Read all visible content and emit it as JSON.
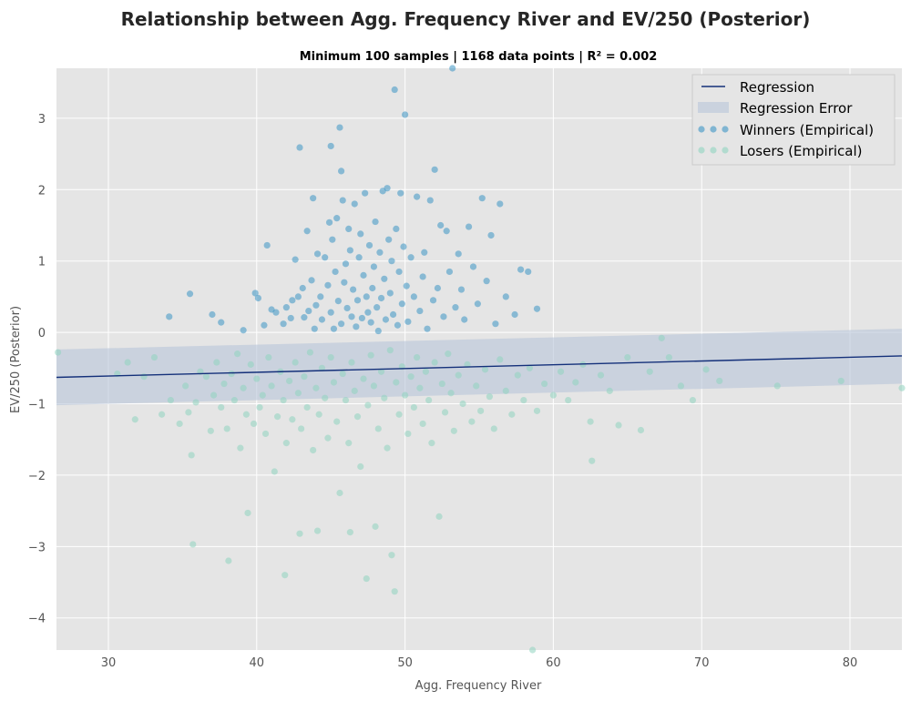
{
  "chart_data": {
    "type": "scatter",
    "title": "Relationship between Agg. Frequency River and EV/250 (Posterior)",
    "subtitle": "Minimum 100 samples | 1168 data points | R² = 0.002",
    "xlabel": "Agg. Frequency River",
    "ylabel": "EV/250 (Posterior)",
    "xlim": [
      26.5,
      83.5
    ],
    "ylim": [
      -4.45,
      3.7
    ],
    "xticks": [
      30,
      40,
      50,
      60,
      70,
      80
    ],
    "yticks": [
      -4,
      -3,
      -2,
      -1,
      0,
      1,
      2,
      3
    ],
    "grid": true,
    "legend_position": "top-right",
    "colors": {
      "background": "#e5e5e5",
      "grid": "#ffffff",
      "regression": "#14307a",
      "regression_error": "#b8c4d8",
      "winners": "#3c95c4",
      "losers": "#8fd3bf"
    },
    "regression": {
      "name": "Regression",
      "points": [
        [
          26.5,
          -0.63
        ],
        [
          83.5,
          -0.33
        ]
      ],
      "error_band": {
        "name": "Regression Error",
        "upper": [
          [
            26.5,
            -0.24
          ],
          [
            83.5,
            0.05
          ]
        ],
        "lower": [
          [
            26.5,
            -1.02
          ],
          [
            83.5,
            -0.72
          ]
        ]
      }
    },
    "series": [
      {
        "name": "Winners (Empirical)",
        "points": [
          [
            34.1,
            0.22
          ],
          [
            35.5,
            0.54
          ],
          [
            37.0,
            0.25
          ],
          [
            37.6,
            0.14
          ],
          [
            39.1,
            0.03
          ],
          [
            39.9,
            0.55
          ],
          [
            40.1,
            0.48
          ],
          [
            40.5,
            0.1
          ],
          [
            40.7,
            1.22
          ],
          [
            41.0,
            0.32
          ],
          [
            41.3,
            0.28
          ],
          [
            41.8,
            0.12
          ],
          [
            42.0,
            0.35
          ],
          [
            42.3,
            0.2
          ],
          [
            42.4,
            0.45
          ],
          [
            42.6,
            1.02
          ],
          [
            42.8,
            0.5
          ],
          [
            42.9,
            2.59
          ],
          [
            43.1,
            0.62
          ],
          [
            43.2,
            0.21
          ],
          [
            43.4,
            1.42
          ],
          [
            43.5,
            0.3
          ],
          [
            43.7,
            0.73
          ],
          [
            43.8,
            1.88
          ],
          [
            43.9,
            0.05
          ],
          [
            44.0,
            0.38
          ],
          [
            44.1,
            1.1
          ],
          [
            44.3,
            0.5
          ],
          [
            44.4,
            0.18
          ],
          [
            44.6,
            1.05
          ],
          [
            44.8,
            0.66
          ],
          [
            44.9,
            1.54
          ],
          [
            45.0,
            2.61
          ],
          [
            45.0,
            0.28
          ],
          [
            45.1,
            1.3
          ],
          [
            45.2,
            0.05
          ],
          [
            45.3,
            0.85
          ],
          [
            45.4,
            1.6
          ],
          [
            45.5,
            0.44
          ],
          [
            45.6,
            2.87
          ],
          [
            45.7,
            2.26
          ],
          [
            45.7,
            0.12
          ],
          [
            45.8,
            1.85
          ],
          [
            45.9,
            0.7
          ],
          [
            46.0,
            0.96
          ],
          [
            46.1,
            0.34
          ],
          [
            46.2,
            1.45
          ],
          [
            46.3,
            1.15
          ],
          [
            46.4,
            0.22
          ],
          [
            46.5,
            0.6
          ],
          [
            46.6,
            1.8
          ],
          [
            46.7,
            0.08
          ],
          [
            46.8,
            0.45
          ],
          [
            46.9,
            1.05
          ],
          [
            47.0,
            1.38
          ],
          [
            47.1,
            0.2
          ],
          [
            47.2,
            0.8
          ],
          [
            47.3,
            1.95
          ],
          [
            47.4,
            0.5
          ],
          [
            47.5,
            0.28
          ],
          [
            47.6,
            1.22
          ],
          [
            47.7,
            0.14
          ],
          [
            47.8,
            0.62
          ],
          [
            47.9,
            0.92
          ],
          [
            48.0,
            1.55
          ],
          [
            48.1,
            0.35
          ],
          [
            48.2,
            0.02
          ],
          [
            48.3,
            1.12
          ],
          [
            48.4,
            0.48
          ],
          [
            48.5,
            1.98
          ],
          [
            48.6,
            0.75
          ],
          [
            48.7,
            0.18
          ],
          [
            48.8,
            2.02
          ],
          [
            48.9,
            1.3
          ],
          [
            49.0,
            0.55
          ],
          [
            49.1,
            1.0
          ],
          [
            49.2,
            0.25
          ],
          [
            49.3,
            3.4
          ],
          [
            49.4,
            1.45
          ],
          [
            49.5,
            0.1
          ],
          [
            49.6,
            0.85
          ],
          [
            49.7,
            1.95
          ],
          [
            49.8,
            0.4
          ],
          [
            49.9,
            1.2
          ],
          [
            50.0,
            3.05
          ],
          [
            50.1,
            0.65
          ],
          [
            50.2,
            0.15
          ],
          [
            50.4,
            1.05
          ],
          [
            50.6,
            0.5
          ],
          [
            50.8,
            1.9
          ],
          [
            51.0,
            0.3
          ],
          [
            51.2,
            0.78
          ],
          [
            51.3,
            1.12
          ],
          [
            51.5,
            0.05
          ],
          [
            51.7,
            1.85
          ],
          [
            51.9,
            0.45
          ],
          [
            52.0,
            2.28
          ],
          [
            52.2,
            0.62
          ],
          [
            52.4,
            1.5
          ],
          [
            52.6,
            0.22
          ],
          [
            52.8,
            1.42
          ],
          [
            53.0,
            0.85
          ],
          [
            53.2,
            3.7
          ],
          [
            53.4,
            0.35
          ],
          [
            53.6,
            1.1
          ],
          [
            53.8,
            0.6
          ],
          [
            54.0,
            0.18
          ],
          [
            54.3,
            1.48
          ],
          [
            54.6,
            0.92
          ],
          [
            54.9,
            0.4
          ],
          [
            55.2,
            1.88
          ],
          [
            55.5,
            0.72
          ],
          [
            55.8,
            1.36
          ],
          [
            56.1,
            0.12
          ],
          [
            56.4,
            1.8
          ],
          [
            56.8,
            0.5
          ],
          [
            57.4,
            0.25
          ],
          [
            57.8,
            0.88
          ],
          [
            58.3,
            0.85
          ],
          [
            58.9,
            0.33
          ]
        ]
      },
      {
        "name": "Losers (Empirical)",
        "points": [
          [
            26.6,
            -0.28
          ],
          [
            30.6,
            -0.58
          ],
          [
            31.3,
            -0.42
          ],
          [
            31.8,
            -1.22
          ],
          [
            32.4,
            -0.62
          ],
          [
            33.1,
            -0.35
          ],
          [
            33.6,
            -1.15
          ],
          [
            34.2,
            -0.95
          ],
          [
            34.8,
            -1.28
          ],
          [
            35.2,
            -0.75
          ],
          [
            35.4,
            -1.12
          ],
          [
            35.6,
            -1.72
          ],
          [
            35.7,
            -2.97
          ],
          [
            35.9,
            -0.98
          ],
          [
            36.2,
            -0.55
          ],
          [
            36.6,
            -0.62
          ],
          [
            36.9,
            -1.38
          ],
          [
            37.1,
            -0.88
          ],
          [
            37.3,
            -0.42
          ],
          [
            37.6,
            -1.05
          ],
          [
            37.8,
            -0.72
          ],
          [
            38.0,
            -1.35
          ],
          [
            38.1,
            -3.2
          ],
          [
            38.3,
            -0.58
          ],
          [
            38.5,
            -0.95
          ],
          [
            38.7,
            -0.3
          ],
          [
            38.9,
            -1.62
          ],
          [
            39.1,
            -0.78
          ],
          [
            39.3,
            -1.15
          ],
          [
            39.4,
            -2.53
          ],
          [
            39.6,
            -0.45
          ],
          [
            39.8,
            -1.28
          ],
          [
            40.0,
            -0.65
          ],
          [
            40.2,
            -1.05
          ],
          [
            40.4,
            -0.88
          ],
          [
            40.6,
            -1.42
          ],
          [
            40.8,
            -0.35
          ],
          [
            41.0,
            -0.75
          ],
          [
            41.2,
            -1.95
          ],
          [
            41.4,
            -1.18
          ],
          [
            41.6,
            -0.55
          ],
          [
            41.8,
            -0.95
          ],
          [
            41.9,
            -3.4
          ],
          [
            42.0,
            -1.55
          ],
          [
            42.2,
            -0.68
          ],
          [
            42.4,
            -1.22
          ],
          [
            42.6,
            -0.42
          ],
          [
            42.8,
            -0.85
          ],
          [
            42.9,
            -2.82
          ],
          [
            43.0,
            -1.35
          ],
          [
            43.2,
            -0.62
          ],
          [
            43.4,
            -1.05
          ],
          [
            43.6,
            -0.28
          ],
          [
            43.8,
            -1.65
          ],
          [
            44.0,
            -0.78
          ],
          [
            44.1,
            -2.78
          ],
          [
            44.2,
            -1.15
          ],
          [
            44.4,
            -0.5
          ],
          [
            44.6,
            -0.92
          ],
          [
            44.8,
            -1.48
          ],
          [
            45.0,
            -0.35
          ],
          [
            45.2,
            -0.7
          ],
          [
            45.4,
            -1.25
          ],
          [
            45.6,
            -2.25
          ],
          [
            45.8,
            -0.58
          ],
          [
            46.0,
            -0.95
          ],
          [
            46.2,
            -1.55
          ],
          [
            46.3,
            -2.8
          ],
          [
            46.4,
            -0.42
          ],
          [
            46.6,
            -0.82
          ],
          [
            46.8,
            -1.18
          ],
          [
            47.0,
            -1.88
          ],
          [
            47.2,
            -0.65
          ],
          [
            47.4,
            -3.45
          ],
          [
            47.5,
            -1.02
          ],
          [
            47.7,
            -0.32
          ],
          [
            47.9,
            -0.75
          ],
          [
            48.0,
            -2.72
          ],
          [
            48.2,
            -1.35
          ],
          [
            48.4,
            -0.55
          ],
          [
            48.6,
            -0.92
          ],
          [
            48.8,
            -1.62
          ],
          [
            49.0,
            -0.25
          ],
          [
            49.1,
            -3.12
          ],
          [
            49.3,
            -3.63
          ],
          [
            49.4,
            -0.7
          ],
          [
            49.6,
            -1.15
          ],
          [
            49.8,
            -0.48
          ],
          [
            50.0,
            -0.88
          ],
          [
            50.2,
            -1.42
          ],
          [
            50.4,
            -0.62
          ],
          [
            50.6,
            -1.05
          ],
          [
            50.8,
            -0.35
          ],
          [
            51.0,
            -0.78
          ],
          [
            51.2,
            -1.28
          ],
          [
            51.4,
            -0.55
          ],
          [
            51.6,
            -0.95
          ],
          [
            51.8,
            -1.55
          ],
          [
            52.0,
            -0.42
          ],
          [
            52.3,
            -2.58
          ],
          [
            52.5,
            -0.72
          ],
          [
            52.7,
            -1.12
          ],
          [
            52.9,
            -0.3
          ],
          [
            53.1,
            -0.85
          ],
          [
            53.3,
            -1.38
          ],
          [
            53.6,
            -0.6
          ],
          [
            53.9,
            -1.0
          ],
          [
            54.2,
            -0.45
          ],
          [
            54.5,
            -1.25
          ],
          [
            54.8,
            -0.75
          ],
          [
            55.1,
            -1.1
          ],
          [
            55.4,
            -0.52
          ],
          [
            55.7,
            -0.9
          ],
          [
            56.0,
            -1.35
          ],
          [
            56.4,
            -0.38
          ],
          [
            56.8,
            -0.82
          ],
          [
            57.2,
            -1.15
          ],
          [
            57.6,
            -0.6
          ],
          [
            58.0,
            -0.95
          ],
          [
            58.4,
            -0.5
          ],
          [
            58.6,
            -4.45
          ],
          [
            58.9,
            -1.1
          ],
          [
            59.4,
            -0.72
          ],
          [
            60.0,
            -0.88
          ],
          [
            60.5,
            -0.55
          ],
          [
            61.0,
            -0.95
          ],
          [
            61.5,
            -0.7
          ],
          [
            62.0,
            -0.45
          ],
          [
            62.5,
            -1.25
          ],
          [
            62.6,
            -1.8
          ],
          [
            63.2,
            -0.6
          ],
          [
            63.8,
            -0.82
          ],
          [
            64.4,
            -1.3
          ],
          [
            65.0,
            -0.35
          ],
          [
            65.9,
            -1.37
          ],
          [
            66.5,
            -0.55
          ],
          [
            67.3,
            -0.08
          ],
          [
            67.8,
            -0.35
          ],
          [
            68.6,
            -0.75
          ],
          [
            69.4,
            -0.95
          ],
          [
            70.3,
            -0.52
          ],
          [
            71.2,
            -0.68
          ],
          [
            75.1,
            -0.75
          ],
          [
            79.4,
            -0.68
          ],
          [
            83.5,
            -0.78
          ]
        ]
      }
    ]
  }
}
